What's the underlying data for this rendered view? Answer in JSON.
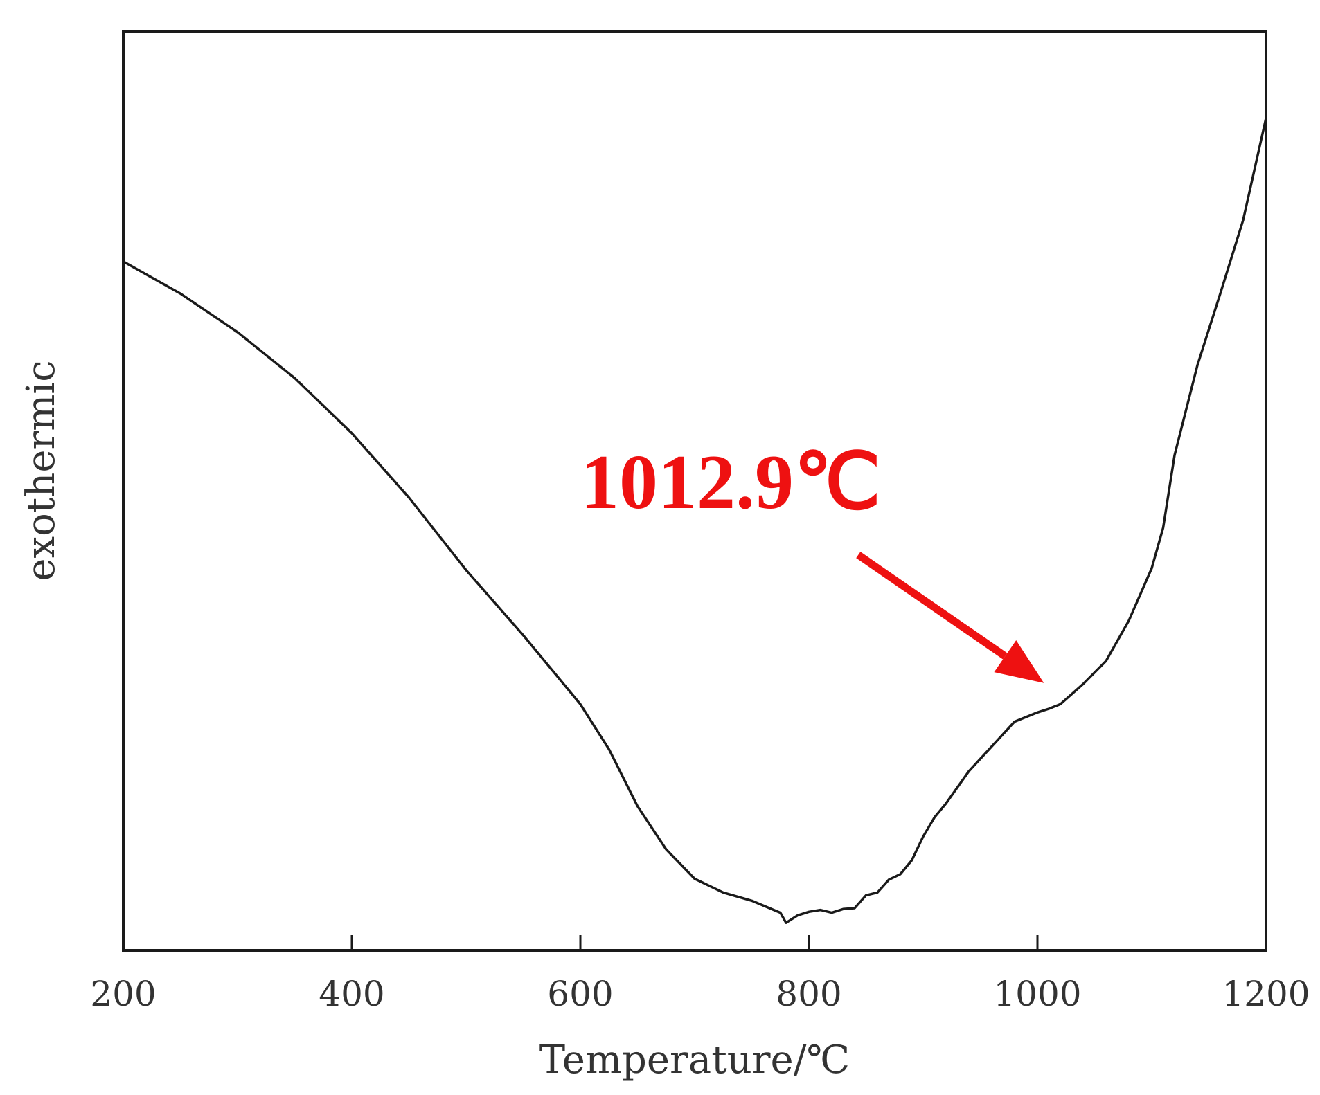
{
  "chart_data": {
    "type": "line",
    "title": "",
    "xlabel": "Temperature/℃",
    "ylabel": "exothermic",
    "xlim": [
      200,
      1200
    ],
    "ylim": [
      0,
      100
    ],
    "x_ticks": [
      "200",
      "400",
      "600",
      "800",
      "1000",
      "1200"
    ],
    "y_ticks": [],
    "grid": false,
    "legend": "none",
    "colors": {
      "line": "#1a1a1a",
      "axes": "#1a1a1a",
      "annotation": "#ee1111"
    },
    "series": [
      {
        "x": [
          200,
          250,
          300,
          350,
          400,
          450,
          500,
          550,
          600,
          625,
          650,
          675,
          700,
          725,
          750,
          775,
          780,
          790,
          800,
          810,
          820,
          830,
          840,
          850,
          860,
          870,
          880,
          890,
          900,
          910,
          920,
          940,
          960,
          980,
          1000,
          1010,
          1020,
          1040,
          1060,
          1080,
          1100,
          1110,
          1120,
          1140,
          1160,
          1180,
          1200
        ],
        "y": [
          75.0,
          71.5,
          67.3,
          62.3,
          56.3,
          49.3,
          41.4,
          34.3,
          26.8,
          21.9,
          15.7,
          11.0,
          7.8,
          6.3,
          5.4,
          4.1,
          3.0,
          3.8,
          4.2,
          4.4,
          4.1,
          4.5,
          4.6,
          6.0,
          6.3,
          7.7,
          8.3,
          9.8,
          12.4,
          14.5,
          16.0,
          19.5,
          22.2,
          24.9,
          25.9,
          26.3,
          26.8,
          29.0,
          31.5,
          35.9,
          41.6,
          46.0,
          53.9,
          63.7,
          71.5,
          79.5,
          90.6
        ]
      }
    ],
    "annotations": [
      {
        "text": "1012.9℃",
        "x": 1012.9,
        "y": 27.0,
        "color": "#ee1111"
      }
    ]
  }
}
